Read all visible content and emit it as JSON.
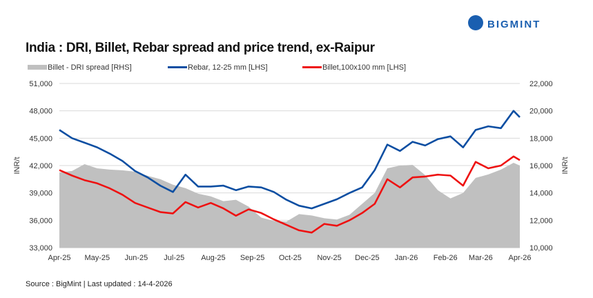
{
  "brand": "BIGMINT",
  "colors": {
    "rebar": "#0b4ea2",
    "billet": "#ee1111",
    "spread": "#c0c0c0",
    "grid": "#d9d9d9",
    "logo": "#1a5fb0"
  },
  "chart_data": {
    "type": "line",
    "title": "India : DRI, Billet, Rebar spread and price trend, ex-Raipur",
    "source": "Source : BigMint | Last updated : 14-4-2026",
    "ylabel": "INR/t",
    "y2label": "INR/t",
    "ylim": [
      33000,
      51000
    ],
    "y2lim": [
      10000,
      22000
    ],
    "yticks": [
      "33,000",
      "36,000",
      "39,000",
      "42,000",
      "45,000",
      "48,000",
      "51,000"
    ],
    "y2ticks": [
      "10,000",
      "12,000",
      "14,000",
      "16,000",
      "18,000",
      "20,000",
      "22,000"
    ],
    "xlim": [
      "2025-04-01",
      "2026-04-01"
    ],
    "xticks": [
      {
        "date": "2025-04-01",
        "label": "Apr-25"
      },
      {
        "date": "2025-05-01",
        "label": "May-25"
      },
      {
        "date": "2025-06-01",
        "label": "Jun-25"
      },
      {
        "date": "2025-07-01",
        "label": "Jul-25"
      },
      {
        "date": "2025-08-01",
        "label": "Aug-25"
      },
      {
        "date": "2025-09-01",
        "label": "Sep-25"
      },
      {
        "date": "2025-10-01",
        "label": "Oct-25"
      },
      {
        "date": "2025-11-01",
        "label": "Nov-25"
      },
      {
        "date": "2025-12-01",
        "label": "Dec-25"
      },
      {
        "date": "2026-01-01",
        "label": "Jan-26"
      },
      {
        "date": "2026-02-01",
        "label": "Feb-26"
      },
      {
        "date": "2026-03-01",
        "label": "Mar-26"
      },
      {
        "date": "2026-04-01",
        "label": "Apr-26"
      }
    ],
    "grid": true,
    "legend": "top",
    "x": [
      "2025-04-01",
      "2025-04-11",
      "2025-04-21",
      "2025-05-01",
      "2025-05-11",
      "2025-05-21",
      "2025-05-31",
      "2025-06-10",
      "2025-06-20",
      "2025-06-30",
      "2025-07-10",
      "2025-07-20",
      "2025-07-30",
      "2025-08-09",
      "2025-08-19",
      "2025-08-29",
      "2025-09-08",
      "2025-09-18",
      "2025-09-28",
      "2025-10-08",
      "2025-10-18",
      "2025-10-28",
      "2025-11-07",
      "2025-11-17",
      "2025-11-27",
      "2025-12-07",
      "2025-12-17",
      "2025-12-27",
      "2026-01-06",
      "2026-01-16",
      "2026-01-26",
      "2026-02-05",
      "2026-02-15",
      "2026-02-25",
      "2026-03-07",
      "2026-03-17",
      "2026-03-27",
      "2026-04-01"
    ],
    "series": [
      {
        "name": "Billet - DRI spread  [RHS]",
        "type": "area",
        "axis": "right",
        "values": [
          15500,
          15600,
          16100,
          15800,
          15700,
          15650,
          15550,
          15250,
          15000,
          14600,
          14350,
          13950,
          13750,
          13400,
          13500,
          13000,
          12200,
          11950,
          11900,
          12450,
          12350,
          12150,
          12050,
          12400,
          13200,
          14000,
          15800,
          16000,
          16050,
          15300,
          14200,
          13600,
          14000,
          15100,
          15350,
          15700,
          16200,
          16000
        ]
      },
      {
        "name": "Rebar, 12-25 mm [LHS]",
        "type": "line",
        "axis": "left",
        "values": [
          45900,
          45000,
          44500,
          44000,
          43300,
          42500,
          41400,
          40700,
          39800,
          39100,
          41000,
          39700,
          39700,
          39800,
          39300,
          39700,
          39600,
          39100,
          38250,
          37600,
          37300,
          37800,
          38300,
          39000,
          39600,
          41500,
          44300,
          43600,
          44600,
          44200,
          44900,
          45200,
          44000,
          45900,
          46300,
          46100,
          48000,
          47300
        ]
      },
      {
        "name": "Billet,100x100 mm [LHS]",
        "type": "line",
        "axis": "left",
        "values": [
          41500,
          40900,
          40400,
          40050,
          39500,
          38800,
          37900,
          37400,
          36900,
          36750,
          38000,
          37400,
          37900,
          37300,
          36500,
          37200,
          36800,
          36100,
          35500,
          34900,
          34650,
          35600,
          35400,
          36000,
          36800,
          37800,
          40500,
          39600,
          40700,
          40800,
          41000,
          40900,
          39800,
          42400,
          41700,
          42000,
          43000,
          42600
        ]
      }
    ]
  }
}
